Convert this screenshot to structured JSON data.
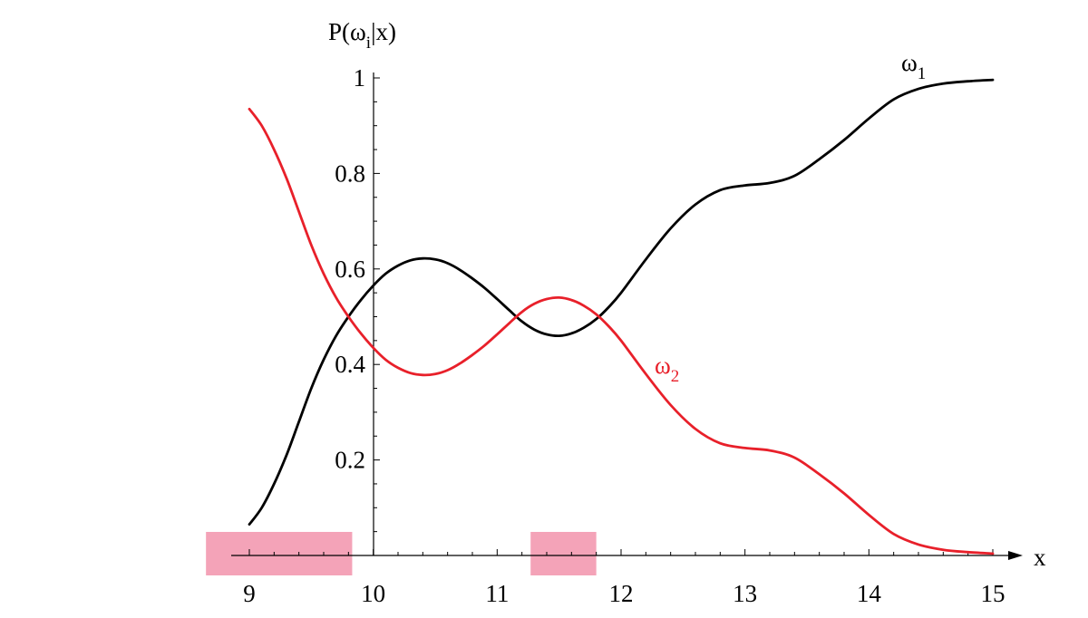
{
  "chart_data": {
    "type": "line",
    "title": "",
    "ylabel": {
      "main": "P(ω",
      "sub": "i",
      "tail": "|x)"
    },
    "xlabel": "x",
    "xlim": [
      9,
      15
    ],
    "ylim": [
      0,
      1
    ],
    "x_ticks": [
      9,
      10,
      11,
      12,
      13,
      14,
      15
    ],
    "x_tick_labels": [
      "9",
      "10",
      "11",
      "12",
      "13",
      "14",
      "15"
    ],
    "y_ticks": [
      0.2,
      0.4,
      0.6,
      0.8,
      1
    ],
    "y_tick_labels": [
      "0.2",
      "0.4",
      "0.6",
      "0.8",
      "1"
    ],
    "grid": false,
    "series": [
      {
        "name": {
          "main": "ω",
          "sub": "1"
        },
        "color": "#000000",
        "x": [
          9.0,
          9.1,
          9.2,
          9.3,
          9.4,
          9.5,
          9.6,
          9.7,
          9.8,
          9.9,
          10.0,
          10.1,
          10.2,
          10.3,
          10.4,
          10.5,
          10.6,
          10.7,
          10.8,
          10.9,
          11.0,
          11.1,
          11.2,
          11.3,
          11.4,
          11.5,
          11.6,
          11.7,
          11.8,
          11.9,
          12.0,
          12.2,
          12.4,
          12.6,
          12.8,
          13.0,
          13.2,
          13.4,
          13.6,
          13.8,
          14.0,
          14.2,
          14.4,
          14.6,
          14.8,
          15.0
        ],
        "y": [
          0.065,
          0.1,
          0.15,
          0.21,
          0.28,
          0.35,
          0.41,
          0.46,
          0.5,
          0.535,
          0.565,
          0.59,
          0.607,
          0.618,
          0.622,
          0.62,
          0.612,
          0.598,
          0.58,
          0.56,
          0.537,
          0.513,
          0.49,
          0.473,
          0.463,
          0.46,
          0.465,
          0.477,
          0.495,
          0.52,
          0.55,
          0.62,
          0.685,
          0.735,
          0.765,
          0.775,
          0.78,
          0.795,
          0.83,
          0.87,
          0.915,
          0.955,
          0.977,
          0.988,
          0.993,
          0.996
        ]
      },
      {
        "name": {
          "main": "ω",
          "sub": "2"
        },
        "color": "#e8202a",
        "x": [
          9.0,
          9.1,
          9.2,
          9.3,
          9.4,
          9.5,
          9.6,
          9.7,
          9.8,
          9.9,
          10.0,
          10.1,
          10.2,
          10.3,
          10.4,
          10.5,
          10.6,
          10.7,
          10.8,
          10.9,
          11.0,
          11.1,
          11.2,
          11.3,
          11.4,
          11.5,
          11.6,
          11.7,
          11.8,
          11.9,
          12.0,
          12.2,
          12.4,
          12.6,
          12.8,
          13.0,
          13.2,
          13.4,
          13.6,
          13.8,
          14.0,
          14.2,
          14.4,
          14.6,
          14.8,
          15.0
        ],
        "y": [
          0.935,
          0.9,
          0.85,
          0.79,
          0.72,
          0.65,
          0.59,
          0.54,
          0.5,
          0.465,
          0.435,
          0.41,
          0.393,
          0.382,
          0.378,
          0.38,
          0.388,
          0.402,
          0.42,
          0.44,
          0.463,
          0.487,
          0.51,
          0.527,
          0.537,
          0.54,
          0.535,
          0.523,
          0.505,
          0.48,
          0.45,
          0.38,
          0.315,
          0.265,
          0.235,
          0.225,
          0.22,
          0.205,
          0.17,
          0.13,
          0.085,
          0.045,
          0.023,
          0.012,
          0.007,
          0.004
        ]
      }
    ],
    "highlights": [
      {
        "x_start": 8.65,
        "x_end": 9.83,
        "color": "#f4a3b8"
      },
      {
        "x_start": 11.27,
        "x_end": 11.8,
        "color": "#f4a3b8"
      }
    ]
  }
}
